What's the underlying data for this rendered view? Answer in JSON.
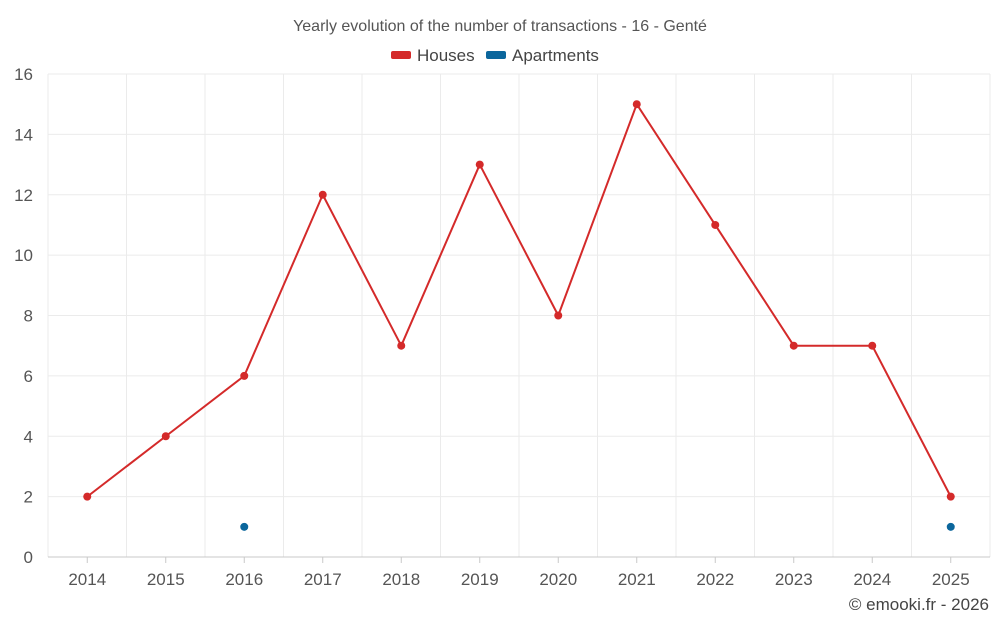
{
  "colors": {
    "houses": "#d42a2a",
    "apartments": "#0b669c",
    "grid": "#ebebeb",
    "axis": "#c8c8c8",
    "text": "#555555"
  },
  "credit": "© emooki.fr - 2026",
  "chart_data": {
    "type": "line",
    "title": "Yearly evolution of the number of transactions - 16 - Genté",
    "xlabel": "",
    "ylabel": "",
    "categories": [
      "2014",
      "2015",
      "2016",
      "2017",
      "2018",
      "2019",
      "2020",
      "2021",
      "2022",
      "2023",
      "2024",
      "2025"
    ],
    "ylim": [
      0,
      16
    ],
    "yticks": [
      0,
      2,
      4,
      6,
      8,
      10,
      12,
      14,
      16
    ],
    "grid": true,
    "legend_position": "top-center",
    "series": [
      {
        "name": "Houses",
        "color": "#d42a2a",
        "line": true,
        "values": [
          2,
          4,
          6,
          12,
          7,
          13,
          8,
          15,
          11,
          7,
          7,
          2
        ]
      },
      {
        "name": "Apartments",
        "color": "#0b669c",
        "line": false,
        "values": [
          null,
          null,
          1,
          null,
          null,
          null,
          null,
          null,
          null,
          null,
          null,
          1
        ]
      }
    ]
  }
}
